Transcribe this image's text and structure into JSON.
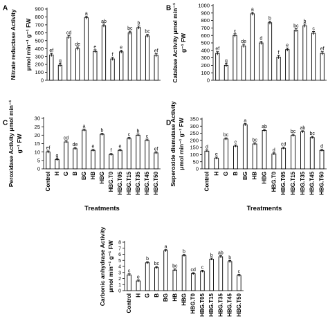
{
  "chart_data": [
    {
      "panel_letter": "A",
      "type": "bar",
      "ylabel_lines": [
        "Nitrate reductase Activity",
        "μmol min⁻¹ g⁻¹ FW"
      ],
      "ylim": [
        0,
        900
      ],
      "yticks": [
        0,
        100,
        200,
        300,
        400,
        500,
        600,
        700,
        800,
        900
      ],
      "categories": [
        "Control",
        "H",
        "G",
        "B",
        "BG",
        "HB",
        "HBG",
        "HBG.T0",
        "HBG.T05",
        "HBG.T15",
        "HBG.T35",
        "HBG.T45",
        "HBG.T50"
      ],
      "values": [
        320,
        190,
        545,
        400,
        790,
        365,
        690,
        270,
        360,
        600,
        665,
        560,
        315
      ],
      "labels": [
        "ef",
        "g",
        "cd",
        "de",
        "a",
        "e",
        "ab",
        "f",
        "e",
        "bc",
        "b",
        "bc",
        "ef"
      ],
      "show_xticks": false,
      "xlabel": ""
    },
    {
      "panel_letter": "B",
      "type": "bar",
      "ylabel_lines": [
        "Catalase Activity μmol min⁻¹",
        "g⁻¹ FW"
      ],
      "ylim": [
        0,
        1000
      ],
      "yticks": [
        0,
        100,
        200,
        300,
        400,
        500,
        600,
        700,
        800,
        900,
        1000
      ],
      "categories": [
        "Control",
        "H",
        "G",
        "B",
        "BG",
        "HB",
        "HBG",
        "HBG.T0",
        "HBG.T05",
        "HBG.T15",
        "HBG.T35",
        "HBG.T45",
        "HBG.T50"
      ],
      "values": [
        360,
        200,
        600,
        460,
        890,
        500,
        770,
        310,
        410,
        670,
        730,
        630,
        360
      ],
      "labels": [
        "ef",
        "g",
        "c",
        "de",
        "a",
        "d",
        "b",
        "f",
        "e",
        "bc",
        "b",
        "c",
        "ef"
      ],
      "show_xticks": false,
      "xlabel": ""
    },
    {
      "panel_letter": "C",
      "type": "bar",
      "ylabel_lines": [
        "Peroxidase Activity μmol min⁻¹",
        "g⁻¹ FW"
      ],
      "ylim": [
        0,
        30
      ],
      "yticks": [
        0,
        5,
        10,
        15,
        20,
        25,
        30
      ],
      "categories": [
        "Control",
        "H",
        "G",
        "B",
        "BG",
        "HB",
        "HBG",
        "HBG.T0",
        "HBG.T05",
        "HBG.T15",
        "HBG.T35",
        "HBG.T45",
        "HBG.T50"
      ],
      "values": [
        10,
        5.5,
        16,
        12,
        23,
        11,
        20.5,
        8.5,
        11,
        18,
        20,
        17,
        9.5
      ],
      "labels": [
        "ef",
        "g",
        "cd",
        "de",
        "a",
        "e",
        "b",
        "f",
        "e",
        "c",
        "b",
        "c",
        "ef"
      ],
      "show_xticks": true,
      "xlabel": "Treatments"
    },
    {
      "panel_letter": "D",
      "type": "bar",
      "ylabel_lines": [
        "Superoxide dismutase Activity",
        "μmol min⁻¹ g⁻¹ FW"
      ],
      "ylim": [
        0,
        350
      ],
      "yticks": [
        0,
        50,
        100,
        150,
        200,
        250,
        300,
        350
      ],
      "categories": [
        "Control",
        "H",
        "G",
        "B",
        "BG",
        "HB",
        "HBG",
        "HBG.T0",
        "HBG.T05",
        "HBG.T15",
        "HBG.T35",
        "HBG.T45",
        "HBG.T50"
      ],
      "values": [
        125,
        75,
        210,
        160,
        310,
        175,
        270,
        105,
        145,
        235,
        260,
        220,
        130
      ],
      "labels": [
        "d",
        "e",
        "bc",
        "c",
        "a",
        "bc",
        "ab",
        "d",
        "cd",
        "bc",
        "ab",
        "bc",
        "d"
      ],
      "show_xticks": true,
      "xlabel": "Treatments"
    },
    {
      "panel_letter": "",
      "type": "bar",
      "ylabel_lines": [
        "Carbonic anhydrase Activity",
        "μmol min⁻¹ g⁻¹ FW"
      ],
      "ylim": [
        0,
        8
      ],
      "yticks": [
        0,
        1,
        2,
        3,
        4,
        5,
        6,
        7,
        8
      ],
      "categories": [
        "Control",
        "H",
        "G",
        "B",
        "BG",
        "HB",
        "HBG",
        "HBG.T0",
        "HBG.T05",
        "HBG.T15",
        "HBG.T35",
        "HBG.T45",
        "HBG.T50"
      ],
      "values": [
        2.6,
        1.6,
        4.6,
        3.8,
        6.6,
        3.4,
        5.8,
        2.8,
        3.2,
        5.2,
        5.6,
        4.8,
        2.5
      ],
      "labels": [
        "c",
        "e",
        "b",
        "bc",
        "a",
        "bc",
        "b",
        "cd",
        "c",
        "b",
        "ab",
        "b",
        "c"
      ],
      "show_xticks": true,
      "xlabel": ""
    }
  ]
}
